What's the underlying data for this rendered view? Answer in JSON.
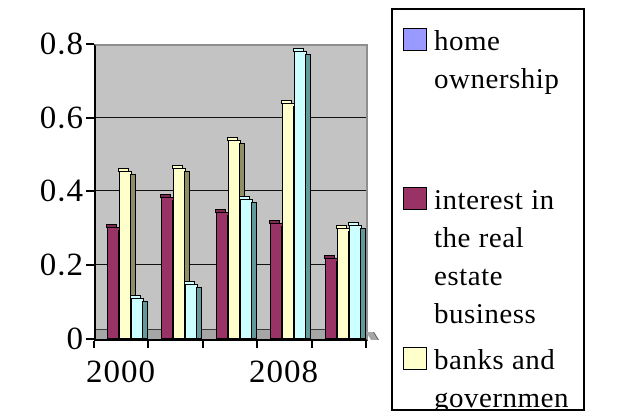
{
  "chart_data": {
    "type": "bar",
    "title": "",
    "plot_background": "#c3c3c3",
    "grid": true,
    "legend_position": "right",
    "ylim": [
      0,
      0.8
    ],
    "yticks": [
      0,
      0.2,
      0.4,
      0.6,
      0.8
    ],
    "ytick_labels": [
      "0",
      "0.2",
      "0.4",
      "0.6",
      "0.8"
    ],
    "groups": 5,
    "xtick_labels": [
      {
        "label": "2000",
        "group_index": 0
      },
      {
        "label": "2008",
        "group_index": 3
      }
    ],
    "series": [
      {
        "name": "interest in the real estate business",
        "color": "#993366",
        "side_color": "#5f2040",
        "cap_color": "#7b2b52",
        "values": [
          0.305,
          0.385,
          0.345,
          0.315,
          0.22
        ]
      },
      {
        "name": "banks and governmen",
        "color": "#ffffcc",
        "side_color": "#8f8f66",
        "cap_color": "#ffffcc",
        "values": [
          0.455,
          0.465,
          0.54,
          0.64,
          0.3
        ]
      },
      {
        "name": "",
        "color": "#ccffff",
        "side_color": "#62999b",
        "cap_color": "#ccffff",
        "values": [
          0.11,
          0.15,
          0.38,
          0.78,
          0.31
        ]
      }
    ],
    "legend": [
      {
        "label": "home ownership",
        "color": "#9999ff"
      },
      {
        "label": "interest in the real estate business",
        "color": "#993366"
      },
      {
        "label": "banks and governmen",
        "color": "#ffffcc"
      }
    ]
  }
}
